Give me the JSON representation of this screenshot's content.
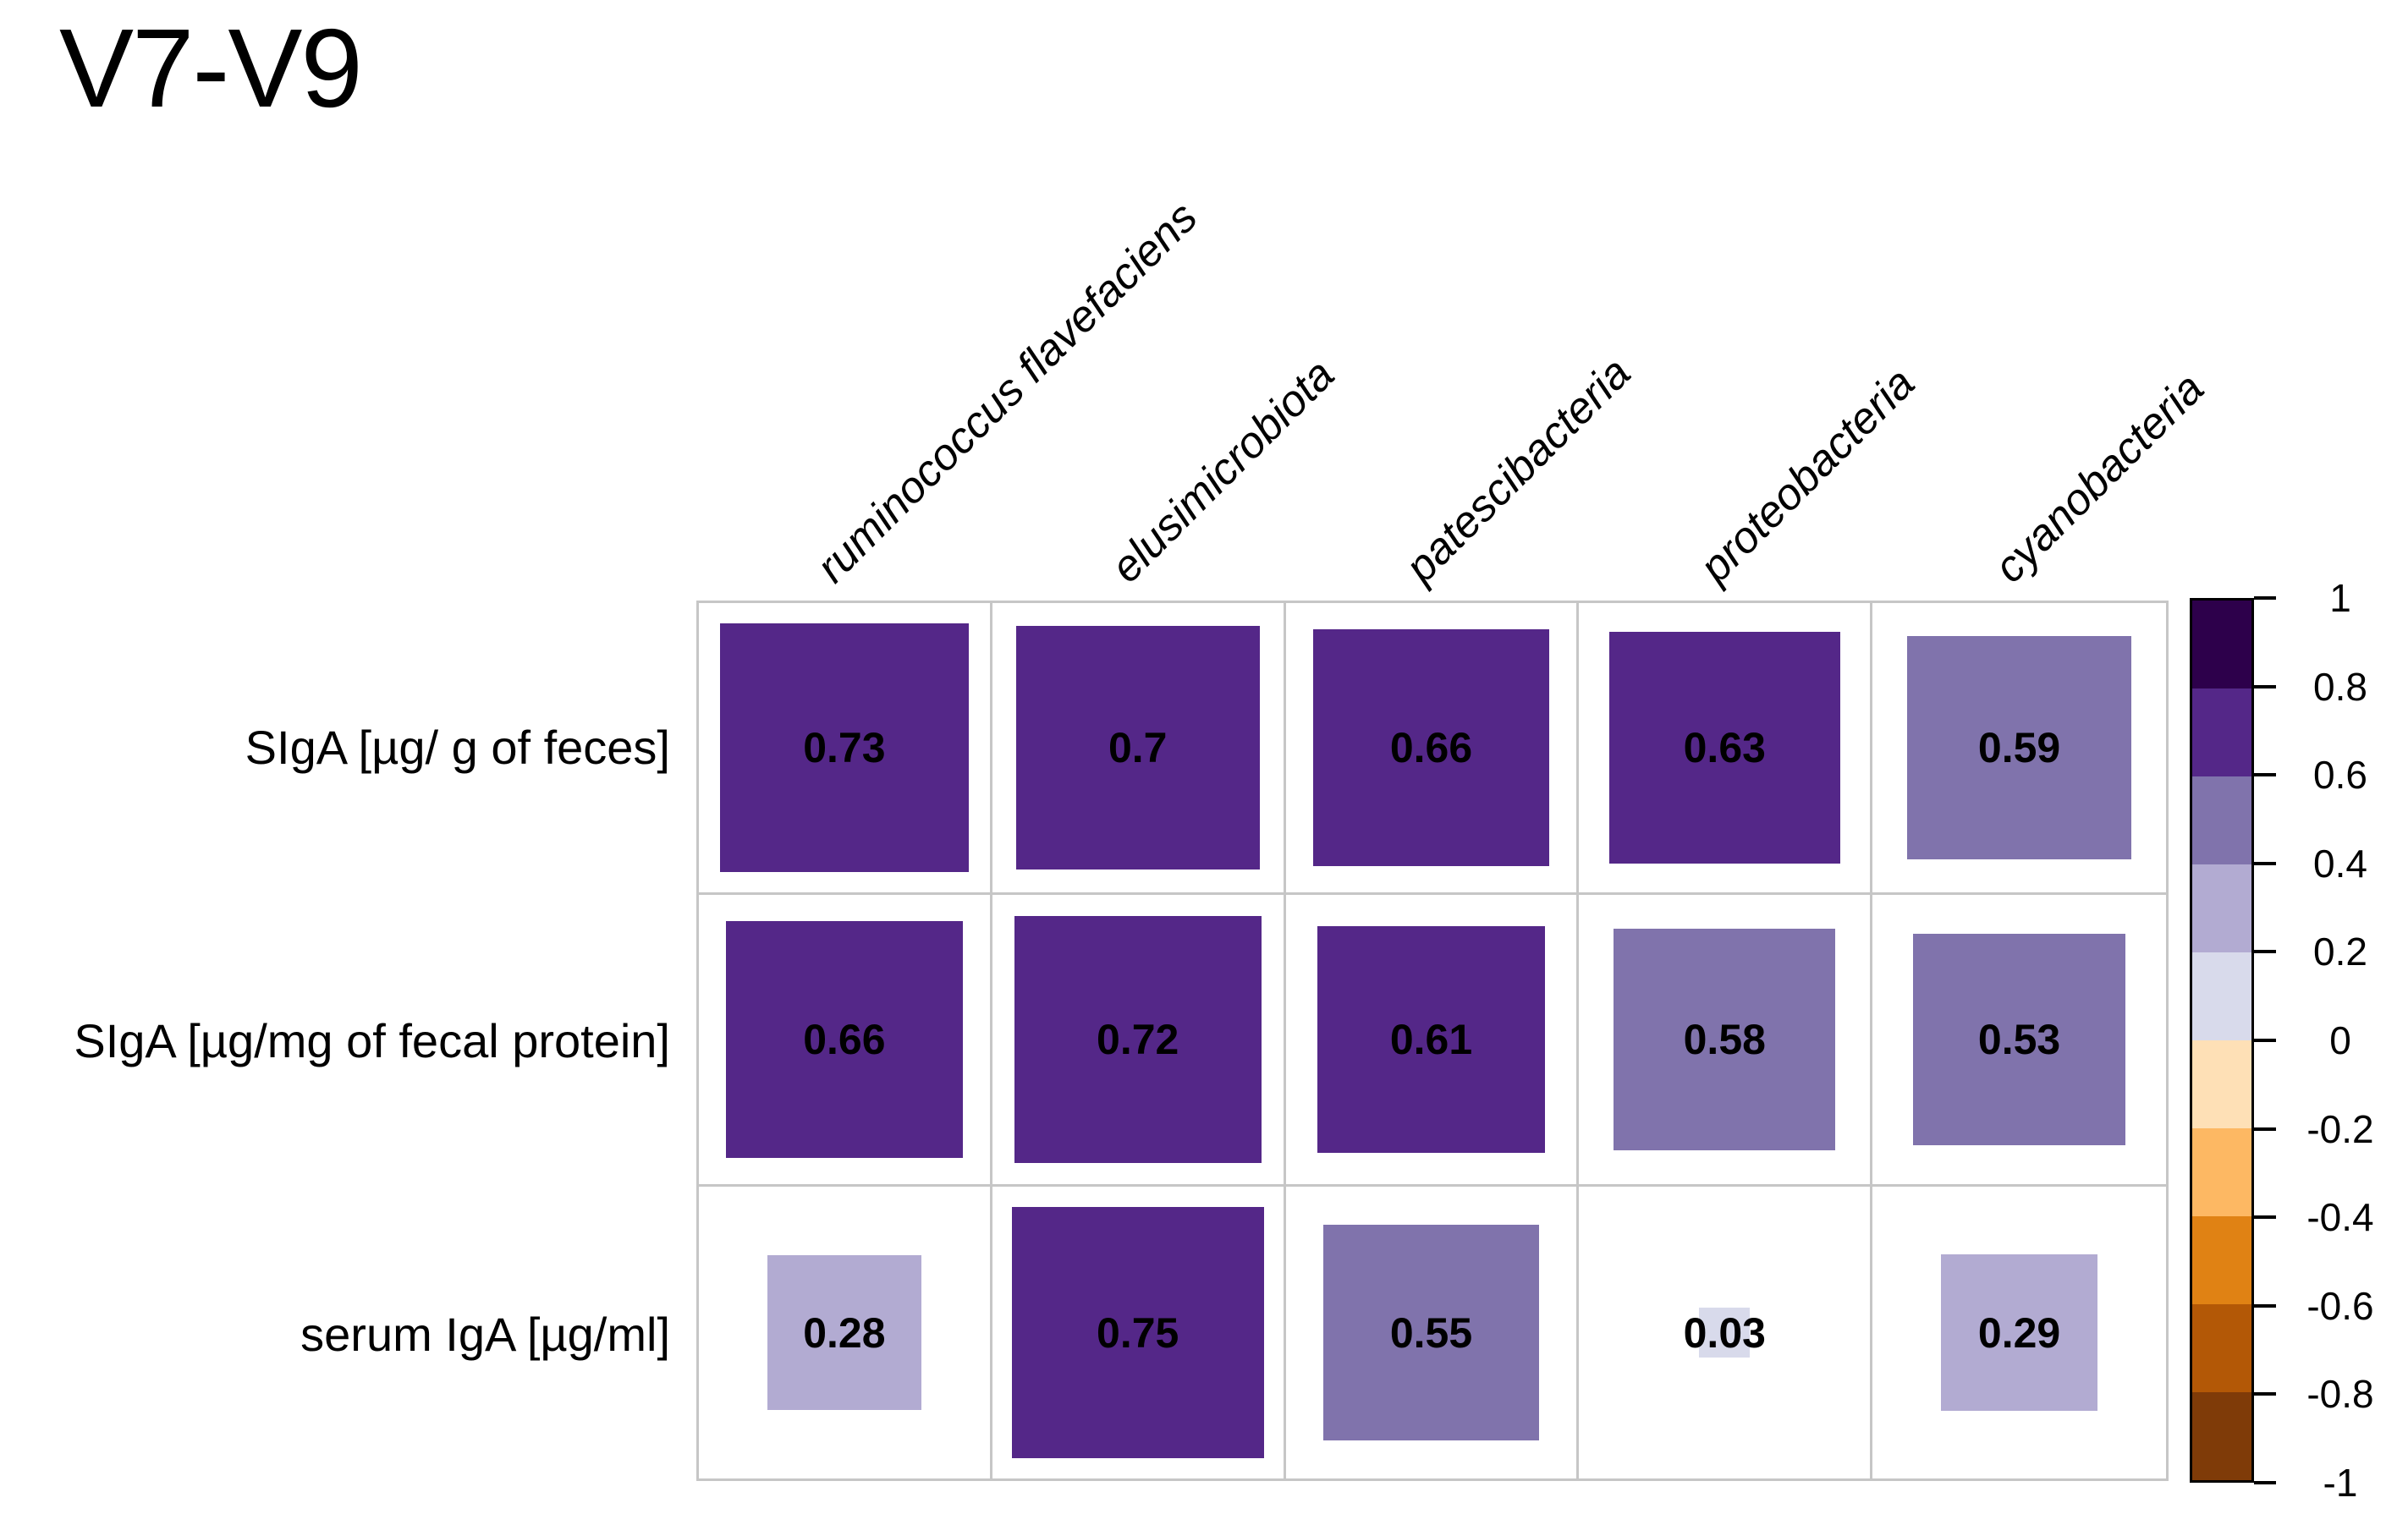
{
  "title": "V7-V9",
  "chart_data": {
    "type": "heatmap",
    "subtype": "correlation-matrix-squares",
    "title": "V7-V9",
    "x_categories": [
      "ruminococcus flavefaciens",
      "elusimicrobiota",
      "patescibacteria",
      "proteobacteria",
      "cyanobacteria"
    ],
    "y_categories": [
      "SIgA [µg/ g of feces]",
      "SIgA [µg/mg of fecal protein]",
      "serum IgA [µg/ml]"
    ],
    "values": [
      [
        0.73,
        0.7,
        0.66,
        0.63,
        0.59
      ],
      [
        0.66,
        0.72,
        0.61,
        0.58,
        0.53
      ],
      [
        0.28,
        0.75,
        0.55,
        0.03,
        0.29
      ]
    ],
    "value_labels": [
      [
        "0.73",
        "0.7",
        "0.66",
        "0.63",
        "0.59"
      ],
      [
        "0.66",
        "0.72",
        "0.61",
        "0.58",
        "0.53"
      ],
      [
        "0.28",
        "0.75",
        "0.55",
        "0.03",
        "0.29"
      ]
    ],
    "encoding": {
      "square_size": "side proportional to sqrt(|r|) of cell",
      "color_binning_step": 0.2,
      "palette_pos_to_neg": [
        "#2D004B",
        "#542788",
        "#8073AC",
        "#B2ABD2",
        "#D8DAEB",
        "#FEE0B6",
        "#FDB863",
        "#E08214",
        "#B35806",
        "#7F3B08"
      ]
    },
    "legend": {
      "position": "right",
      "range_top_to_bottom": [
        1,
        -1
      ],
      "ticks": [
        "1",
        "0.8",
        "0.6",
        "0.4",
        "0.2",
        "0",
        "-0.2",
        "-0.4",
        "-0.6",
        "-0.8",
        "-1"
      ]
    },
    "grid": true,
    "xlabel": "",
    "ylabel": ""
  },
  "colors": {
    "background": "#ffffff",
    "grid_line": "#c6c6c6",
    "colorbar_border": "#000000",
    "text": "#000000",
    "value_text": "#000000"
  }
}
